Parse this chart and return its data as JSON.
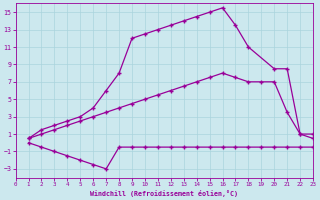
{
  "xlabel": "Windchill (Refroidissement éolien,°C)",
  "background_color": "#cce8ee",
  "line_color": "#990099",
  "xlim": [
    0,
    23
  ],
  "ylim": [
    -4,
    16
  ],
  "xticks": [
    0,
    1,
    2,
    3,
    4,
    5,
    6,
    7,
    8,
    9,
    10,
    11,
    12,
    13,
    14,
    15,
    16,
    17,
    18,
    19,
    20,
    21,
    22,
    23
  ],
  "yticks": [
    -3,
    -1,
    1,
    3,
    5,
    7,
    9,
    11,
    13,
    15
  ],
  "grid_color": "#aad4dd",
  "marker": "+",
  "s1x": [
    1,
    2,
    3,
    4,
    5,
    6,
    7,
    8,
    9,
    10,
    11,
    12,
    13,
    14,
    15,
    16,
    17,
    18,
    19,
    20,
    21,
    22,
    23
  ],
  "s1y": [
    0.0,
    -0.5,
    -1.0,
    -1.5,
    -2.0,
    -2.5,
    -3.0,
    -0.5,
    -0.5,
    -0.5,
    -0.5,
    -0.5,
    -0.5,
    -0.5,
    -0.5,
    -0.5,
    -0.5,
    -0.5,
    -0.5,
    -0.5,
    -0.5,
    -0.5,
    -0.5
  ],
  "s2x": [
    1,
    2,
    3,
    4,
    5,
    6,
    7,
    8,
    9,
    10,
    11,
    12,
    13,
    14,
    15,
    16,
    17,
    18,
    19,
    20,
    21,
    22,
    23
  ],
  "s2y": [
    0.5,
    1.0,
    1.5,
    2.0,
    2.5,
    3.0,
    3.5,
    4.0,
    4.5,
    5.0,
    5.5,
    6.0,
    6.5,
    7.0,
    7.5,
    8.0,
    7.5,
    7.0,
    7.0,
    7.0,
    3.5,
    1.0,
    0.5
  ],
  "s3x": [
    1,
    2,
    3,
    4,
    5,
    6,
    7,
    8,
    9,
    10,
    11,
    12,
    13,
    14,
    15,
    16,
    17,
    18,
    20,
    21,
    22,
    23
  ],
  "s3y": [
    0.5,
    1.5,
    2.0,
    2.5,
    3.0,
    4.0,
    6.0,
    8.0,
    12.0,
    12.5,
    13.0,
    13.5,
    14.0,
    14.5,
    15.0,
    15.5,
    13.5,
    11.0,
    8.5,
    8.5,
    1.0,
    1.0
  ]
}
